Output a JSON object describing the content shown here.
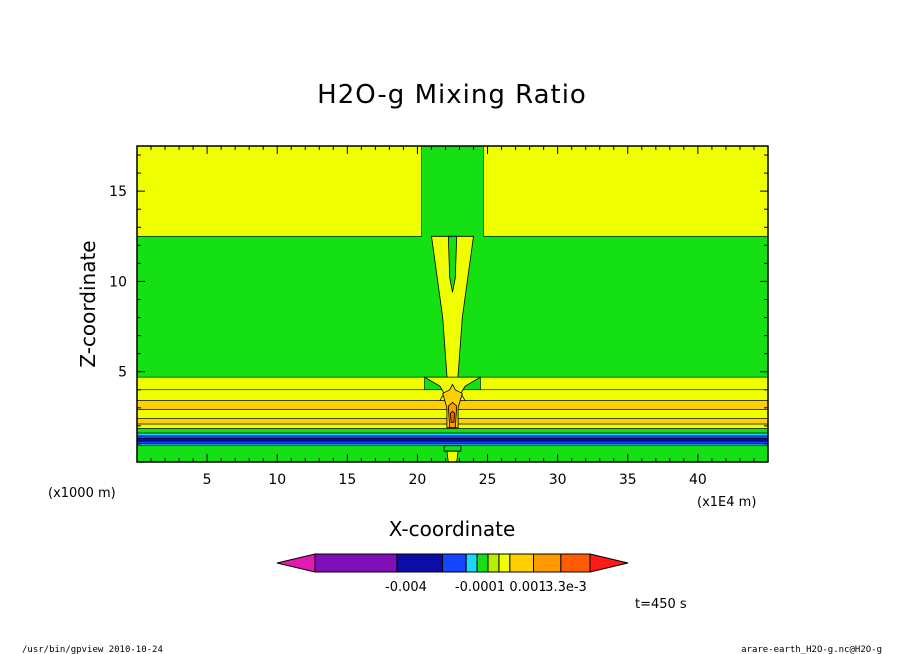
{
  "chart_data": {
    "type": "heatmap",
    "title": "H2O-g Mixing Ratio",
    "xlabel": "X-coordinate",
    "ylabel": "Z-coordinate",
    "x_unit": "(x1E4 m)",
    "y_unit": "(x1000 m)",
    "xlim": [
      0,
      45
    ],
    "ylim": [
      0,
      17.5
    ],
    "x_ticks": [
      5,
      10,
      15,
      20,
      25,
      30,
      35,
      40
    ],
    "y_ticks": [
      5,
      10,
      15
    ],
    "time_label": "t=450 s",
    "colorbar": {
      "colors": [
        "#e11ab4",
        "#7f0fb8",
        "#0c0ca8",
        "#1446ff",
        "#18d8ff",
        "#14e014",
        "#b6f000",
        "#f0ff00",
        "#ffd000",
        "#ff9a00",
        "#ff5c00",
        "#ff1a1a"
      ],
      "labels": [
        "-0.004",
        "-0.0001",
        "0.001",
        "3.3e-3"
      ]
    },
    "regions": [
      {
        "color": "#14e014",
        "x": [
          0,
          45
        ],
        "y": [
          0,
          17.5
        ]
      },
      {
        "color": "#f0ff00",
        "x": [
          0,
          20.3
        ],
        "y": [
          12.5,
          17.5
        ]
      },
      {
        "color": "#f0ff00",
        "x": [
          24.7,
          45
        ],
        "y": [
          12.5,
          17.5
        ]
      },
      {
        "color": "#f0ff00",
        "x": [
          0,
          20.5
        ],
        "y": [
          4.0,
          4.7
        ]
      },
      {
        "color": "#f0ff00",
        "x": [
          24.5,
          45
        ],
        "y": [
          4.0,
          4.7
        ]
      },
      {
        "color": "#f0ff00",
        "x": [
          0,
          45
        ],
        "y": [
          3.4,
          4.0
        ]
      },
      {
        "color": "#ffd000",
        "x": [
          0,
          45
        ],
        "y": [
          2.9,
          3.4
        ]
      },
      {
        "color": "#f0ff00",
        "x": [
          0,
          45
        ],
        "y": [
          2.4,
          2.9
        ]
      },
      {
        "color": "#ffd000",
        "x": [
          0,
          45
        ],
        "y": [
          2.1,
          2.4
        ]
      },
      {
        "color": "#f0ff00",
        "x": [
          0,
          45
        ],
        "y": [
          1.85,
          2.1
        ]
      },
      {
        "color": "#14e014",
        "x": [
          0,
          45
        ],
        "y": [
          1.6,
          1.85
        ]
      },
      {
        "color": "#18d8ff",
        "x": [
          0,
          45
        ],
        "y": [
          1.45,
          1.6
        ]
      },
      {
        "color": "#1446ff",
        "x": [
          0,
          45
        ],
        "y": [
          1.3,
          1.45
        ]
      },
      {
        "color": "#0c0ca8",
        "x": [
          0,
          45
        ],
        "y": [
          1.15,
          1.3
        ]
      },
      {
        "color": "#1446ff",
        "x": [
          0,
          45
        ],
        "y": [
          1.0,
          1.15
        ]
      },
      {
        "color": "#18d8ff",
        "x": [
          0,
          45
        ],
        "y": [
          0.9,
          1.0
        ]
      },
      {
        "color": "#14e014",
        "x": [
          0,
          45
        ],
        "y": [
          0,
          0.9
        ]
      }
    ],
    "shapes": [
      {
        "color": "#f0ff00",
        "points": [
          [
            21.0,
            12.5
          ],
          [
            24.0,
            12.5
          ],
          [
            23.2,
            8.0
          ],
          [
            22.9,
            4.8
          ],
          [
            22.7,
            3.6
          ],
          [
            22.3,
            3.6
          ],
          [
            22.1,
            4.8
          ],
          [
            21.8,
            8.0
          ]
        ]
      },
      {
        "color": "#14e014",
        "points": [
          [
            22.2,
            12.5
          ],
          [
            22.8,
            12.5
          ],
          [
            22.7,
            10.2
          ],
          [
            22.5,
            9.4
          ],
          [
            22.3,
            10.2
          ]
        ]
      },
      {
        "color": "#f0ff00",
        "points": [
          [
            20.5,
            4.7
          ],
          [
            21.6,
            4.2
          ],
          [
            21.9,
            3.8
          ],
          [
            21.6,
            3.4
          ],
          [
            23.4,
            3.4
          ],
          [
            23.1,
            3.8
          ],
          [
            23.4,
            4.2
          ],
          [
            24.5,
            4.7
          ]
        ]
      },
      {
        "color": "#ffd000",
        "points": [
          [
            21.8,
            3.8
          ],
          [
            22.3,
            4.0
          ],
          [
            22.5,
            4.3
          ],
          [
            22.7,
            4.0
          ],
          [
            23.2,
            3.8
          ],
          [
            22.9,
            3.0
          ],
          [
            22.9,
            1.9
          ],
          [
            22.1,
            1.9
          ],
          [
            22.1,
            3.0
          ]
        ]
      },
      {
        "color": "#ff9a00",
        "points": [
          [
            22.2,
            3.1
          ],
          [
            22.5,
            3.3
          ],
          [
            22.8,
            3.1
          ],
          [
            22.7,
            1.9
          ],
          [
            22.3,
            1.9
          ]
        ]
      },
      {
        "color": "#ff5c00",
        "points": [
          [
            22.35,
            2.7
          ],
          [
            22.5,
            2.8
          ],
          [
            22.65,
            2.7
          ],
          [
            22.6,
            2.2
          ],
          [
            22.4,
            2.2
          ]
        ]
      },
      {
        "color": "#14e014",
        "points": [
          [
            21.9,
            0.9
          ],
          [
            23.1,
            0.9
          ],
          [
            23.1,
            0.6
          ],
          [
            21.9,
            0.6
          ]
        ]
      },
      {
        "color": "#f0ff00",
        "points": [
          [
            22.1,
            0.6
          ],
          [
            22.9,
            0.6
          ],
          [
            22.8,
            0
          ],
          [
            22.2,
            0
          ]
        ]
      }
    ]
  },
  "footer": {
    "left": "/usr/bin/gpview   2010-10-24",
    "right": "arare-earth_H2O-g.nc@H2O-g"
  }
}
